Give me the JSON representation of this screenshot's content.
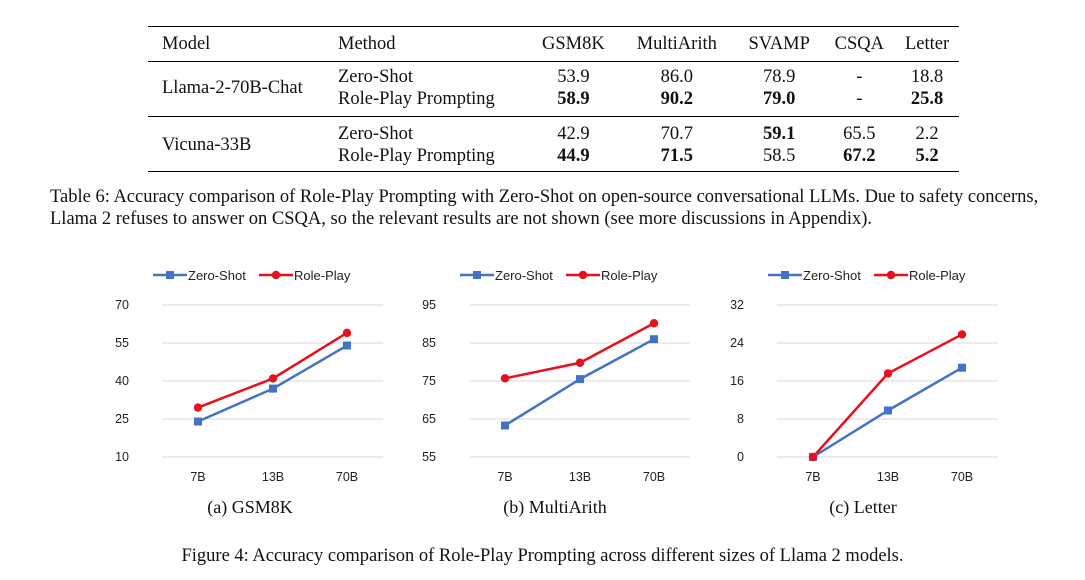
{
  "table": {
    "headers": [
      "Model",
      "Method",
      "GSM8K",
      "MultiArith",
      "SVAMP",
      "CSQA",
      "Letter"
    ],
    "groups": [
      {
        "model": "Llama-2-70B-Chat",
        "rows": [
          {
            "method": "Zero-Shot",
            "values": [
              "53.9",
              "86.0",
              "78.9",
              "-",
              "18.8"
            ],
            "bold": [
              false,
              false,
              false,
              false,
              false
            ]
          },
          {
            "method": "Role-Play Prompting",
            "values": [
              "58.9",
              "90.2",
              "79.0",
              "-",
              "25.8"
            ],
            "bold": [
              true,
              true,
              true,
              false,
              true
            ]
          }
        ]
      },
      {
        "model": "Vicuna-33B",
        "rows": [
          {
            "method": "Zero-Shot",
            "values": [
              "42.9",
              "70.7",
              "59.1",
              "65.5",
              "2.2"
            ],
            "bold": [
              false,
              false,
              true,
              false,
              false
            ]
          },
          {
            "method": "Role-Play Prompting",
            "values": [
              "44.9",
              "71.5",
              "58.5",
              "67.2",
              "5.2"
            ],
            "bold": [
              true,
              true,
              false,
              true,
              true
            ]
          }
        ]
      }
    ],
    "caption": "Table 6: Accuracy comparison of Role-Play Prompting with Zero-Shot on open-source conversational LLMs. Due to safety concerns, Llama 2 refuses to answer on CSQA, so the relevant results are not shown (see more discussions in Appendix)."
  },
  "figure_caption": "Figure 4: Accuracy comparison of Role-Play Prompting across different sizes of Llama 2 models.",
  "colors": {
    "zero_shot": "#4472c4",
    "role_play": "#e8101d",
    "grid": "#d9d9d9"
  },
  "chart_data": [
    {
      "type": "line",
      "caption": "(a) GSM8K",
      "categories": [
        "7B",
        "13B",
        "70B"
      ],
      "yticks": [
        10,
        25,
        40,
        55,
        70
      ],
      "ylim": [
        10,
        70
      ],
      "legend": "top",
      "series": [
        {
          "name": "Zero-Shot",
          "marker": "square",
          "values": [
            24.0,
            37.0,
            54.0
          ]
        },
        {
          "name": "Role-Play",
          "marker": "circle",
          "values": [
            29.5,
            41.0,
            59.0
          ]
        }
      ]
    },
    {
      "type": "line",
      "caption": "(b) MultiArith",
      "categories": [
        "7B",
        "13B",
        "70B"
      ],
      "yticks": [
        55,
        65,
        75,
        85,
        95
      ],
      "ylim": [
        55,
        95
      ],
      "legend": "top",
      "series": [
        {
          "name": "Zero-Shot",
          "marker": "square",
          "values": [
            63.3,
            75.5,
            86.0
          ]
        },
        {
          "name": "Role-Play",
          "marker": "circle",
          "values": [
            75.7,
            79.8,
            90.2
          ]
        }
      ]
    },
    {
      "type": "line",
      "caption": "(c) Letter",
      "categories": [
        "7B",
        "13B",
        "70B"
      ],
      "yticks": [
        0,
        8,
        16,
        24,
        32
      ],
      "ylim": [
        0,
        32
      ],
      "legend": "top",
      "series": [
        {
          "name": "Zero-Shot",
          "marker": "square",
          "values": [
            0.0,
            9.8,
            18.8
          ]
        },
        {
          "name": "Role-Play",
          "marker": "circle",
          "values": [
            0.0,
            17.6,
            25.8
          ]
        }
      ]
    }
  ]
}
